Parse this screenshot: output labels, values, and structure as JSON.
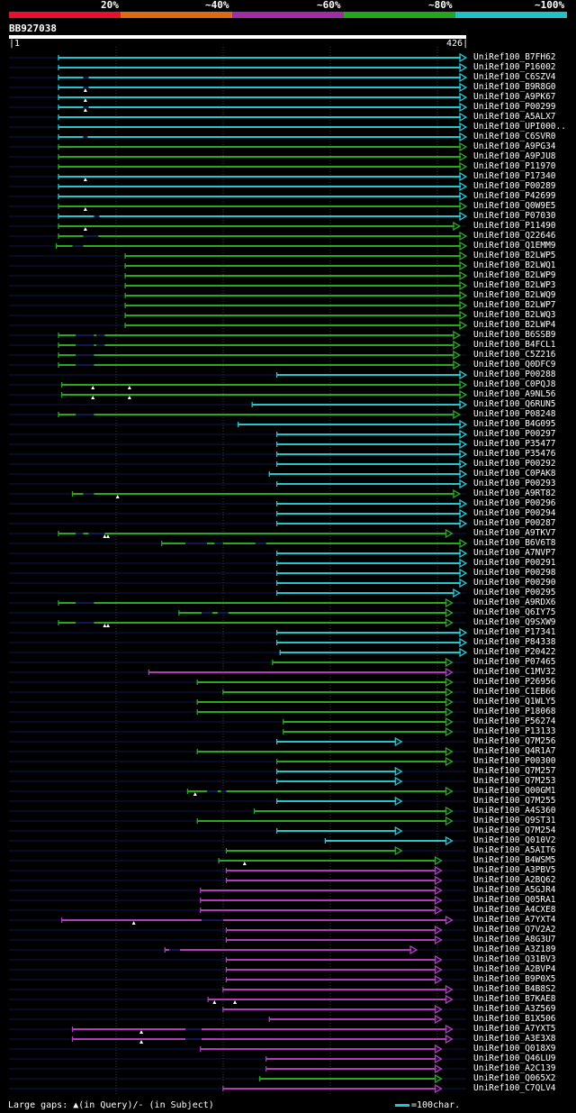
{
  "query": {
    "id": "BB927038",
    "length": 426,
    "start_label": "1",
    "end_label": "426"
  },
  "identity_scale": [
    {
      "label": "20%",
      "color": "#e8112d"
    },
    {
      "label": "~40%",
      "color": "#e06a10"
    },
    {
      "label": "~60%",
      "color": "#a02ca6"
    },
    {
      "label": "~80%",
      "color": "#23a61c"
    },
    {
      "label": "~100%",
      "color": "#20c2c8"
    }
  ],
  "colors": {
    "cyan": "#22c6cc",
    "green": "#28a81e",
    "magenta": "#b03cbc",
    "background": "#000000",
    "query_line": "#0f1650",
    "grid": "#3a3a3a"
  },
  "hits": [
    {
      "name": "UniRef100_B7FH62",
      "start": 47,
      "end": 426,
      "color": "cyan",
      "q_gaps": [],
      "s_gaps": []
    },
    {
      "name": "UniRef100_P16002",
      "start": 47,
      "end": 426,
      "color": "cyan",
      "q_gaps": [],
      "s_gaps": []
    },
    {
      "name": "UniRef100_C6SZV4",
      "start": 47,
      "end": 426,
      "color": "cyan",
      "q_gaps": [],
      "s_gaps": [
        [
          70,
          75
        ]
      ]
    },
    {
      "name": "UniRef100_B9R8G0",
      "start": 47,
      "end": 426,
      "color": "cyan",
      "q_gaps": [
        72
      ],
      "s_gaps": [
        [
          70,
          75
        ]
      ]
    },
    {
      "name": "UniRef100_A9PK67",
      "start": 47,
      "end": 426,
      "color": "cyan",
      "q_gaps": [
        72
      ],
      "s_gaps": []
    },
    {
      "name": "UniRef100_P00299",
      "start": 47,
      "end": 426,
      "color": "cyan",
      "q_gaps": [
        72
      ],
      "s_gaps": [
        [
          70,
          75
        ]
      ]
    },
    {
      "name": "UniRef100_A5ALX7",
      "start": 47,
      "end": 426,
      "color": "cyan",
      "q_gaps": [],
      "s_gaps": []
    },
    {
      "name": "UniRef100_UPI000..",
      "start": 47,
      "end": 426,
      "color": "cyan",
      "q_gaps": [],
      "s_gaps": []
    },
    {
      "name": "UniRef100_C6SVR0",
      "start": 47,
      "end": 426,
      "color": "cyan",
      "q_gaps": [],
      "s_gaps": [
        [
          70,
          74
        ]
      ]
    },
    {
      "name": "UniRef100_A9PG34",
      "start": 47,
      "end": 426,
      "color": "green",
      "q_gaps": [],
      "s_gaps": []
    },
    {
      "name": "UniRef100_A9PJU8",
      "start": 47,
      "end": 426,
      "color": "green",
      "q_gaps": [],
      "s_gaps": []
    },
    {
      "name": "UniRef100_P11970",
      "start": 47,
      "end": 426,
      "color": "green",
      "q_gaps": [],
      "s_gaps": []
    },
    {
      "name": "UniRef100_P17340",
      "start": 47,
      "end": 426,
      "color": "cyan",
      "q_gaps": [
        72
      ],
      "s_gaps": []
    },
    {
      "name": "UniRef100_P00289",
      "start": 47,
      "end": 426,
      "color": "cyan",
      "q_gaps": [],
      "s_gaps": []
    },
    {
      "name": "UniRef100_P42699",
      "start": 47,
      "end": 426,
      "color": "cyan",
      "q_gaps": [],
      "s_gaps": []
    },
    {
      "name": "UniRef100_Q0W9E5",
      "start": 47,
      "end": 426,
      "color": "green",
      "q_gaps": [
        72
      ],
      "s_gaps": []
    },
    {
      "name": "UniRef100_P07030",
      "start": 47,
      "end": 426,
      "color": "cyan",
      "q_gaps": [],
      "s_gaps": [
        [
          80,
          85
        ]
      ]
    },
    {
      "name": "UniRef100_P11490",
      "start": 47,
      "end": 420,
      "color": "green",
      "q_gaps": [
        72
      ],
      "s_gaps": []
    },
    {
      "name": "UniRef100_Q22646",
      "start": 47,
      "end": 426,
      "color": "green",
      "q_gaps": [],
      "s_gaps": [
        [
          70,
          84
        ]
      ]
    },
    {
      "name": "UniRef100_Q1EMM9",
      "start": 45,
      "end": 426,
      "color": "green",
      "q_gaps": [],
      "s_gaps": [
        [
          60,
          70
        ]
      ]
    },
    {
      "name": "UniRef100_B2LWP5",
      "start": 109,
      "end": 426,
      "color": "green",
      "q_gaps": [],
      "s_gaps": []
    },
    {
      "name": "UniRef100_B2LWQ1",
      "start": 109,
      "end": 426,
      "color": "green",
      "q_gaps": [],
      "s_gaps": []
    },
    {
      "name": "UniRef100_B2LWP9",
      "start": 109,
      "end": 426,
      "color": "green",
      "q_gaps": [],
      "s_gaps": []
    },
    {
      "name": "UniRef100_B2LWP3",
      "start": 109,
      "end": 426,
      "color": "green",
      "q_gaps": [],
      "s_gaps": []
    },
    {
      "name": "UniRef100_B2LWQ9",
      "start": 109,
      "end": 426,
      "color": "green",
      "q_gaps": [],
      "s_gaps": []
    },
    {
      "name": "UniRef100_B2LWP7",
      "start": 109,
      "end": 426,
      "color": "green",
      "q_gaps": [],
      "s_gaps": []
    },
    {
      "name": "UniRef100_B2LWQ3",
      "start": 109,
      "end": 426,
      "color": "green",
      "q_gaps": [],
      "s_gaps": []
    },
    {
      "name": "UniRef100_B2LWP4",
      "start": 109,
      "end": 426,
      "color": "green",
      "q_gaps": [],
      "s_gaps": []
    },
    {
      "name": "UniRef100_B6SSB9",
      "start": 47,
      "end": 420,
      "color": "green",
      "q_gaps": [],
      "s_gaps": [
        [
          63,
          80
        ],
        [
          82,
          90
        ]
      ]
    },
    {
      "name": "UniRef100_B4FCL1",
      "start": 47,
      "end": 420,
      "color": "green",
      "q_gaps": [],
      "s_gaps": [
        [
          63,
          80
        ],
        [
          82,
          90
        ]
      ]
    },
    {
      "name": "UniRef100_C5Z216",
      "start": 47,
      "end": 420,
      "color": "green",
      "q_gaps": [],
      "s_gaps": [
        [
          63,
          80
        ]
      ]
    },
    {
      "name": "UniRef100_Q0DFC9",
      "start": 47,
      "end": 420,
      "color": "green",
      "q_gaps": [],
      "s_gaps": [
        [
          63,
          80
        ]
      ]
    },
    {
      "name": "UniRef100_P00288",
      "start": 250,
      "end": 426,
      "color": "cyan",
      "q_gaps": [],
      "s_gaps": []
    },
    {
      "name": "UniRef100_C0PQJ8",
      "start": 50,
      "end": 426,
      "color": "green",
      "q_gaps": [
        79,
        113
      ],
      "s_gaps": []
    },
    {
      "name": "UniRef100_A9NL56",
      "start": 50,
      "end": 426,
      "color": "green",
      "q_gaps": [
        79,
        113
      ],
      "s_gaps": []
    },
    {
      "name": "UniRef100_Q6RUN5",
      "start": 227,
      "end": 426,
      "color": "cyan",
      "q_gaps": [],
      "s_gaps": []
    },
    {
      "name": "UniRef100_P08248",
      "start": 47,
      "end": 420,
      "color": "green",
      "q_gaps": [],
      "s_gaps": [
        [
          63,
          80
        ]
      ]
    },
    {
      "name": "UniRef100_B4G095",
      "start": 214,
      "end": 426,
      "color": "cyan",
      "q_gaps": [],
      "s_gaps": []
    },
    {
      "name": "UniRef100_P00297",
      "start": 250,
      "end": 426,
      "color": "cyan",
      "q_gaps": [],
      "s_gaps": []
    },
    {
      "name": "UniRef100_P35477",
      "start": 250,
      "end": 426,
      "color": "cyan",
      "q_gaps": [],
      "s_gaps": []
    },
    {
      "name": "UniRef100_P35476",
      "start": 250,
      "end": 426,
      "color": "cyan",
      "q_gaps": [],
      "s_gaps": []
    },
    {
      "name": "UniRef100_P00292",
      "start": 250,
      "end": 426,
      "color": "cyan",
      "q_gaps": [],
      "s_gaps": []
    },
    {
      "name": "UniRef100_C0PAK8",
      "start": 243,
      "end": 426,
      "color": "cyan",
      "q_gaps": [],
      "s_gaps": []
    },
    {
      "name": "UniRef100_P00293",
      "start": 250,
      "end": 426,
      "color": "cyan",
      "q_gaps": [],
      "s_gaps": []
    },
    {
      "name": "UniRef100_A9RT82",
      "start": 60,
      "end": 420,
      "color": "green",
      "q_gaps": [
        102
      ],
      "s_gaps": [
        [
          70,
          80
        ]
      ]
    },
    {
      "name": "UniRef100_P00296",
      "start": 250,
      "end": 426,
      "color": "cyan",
      "q_gaps": [],
      "s_gaps": []
    },
    {
      "name": "UniRef100_P00294",
      "start": 250,
      "end": 426,
      "color": "cyan",
      "q_gaps": [],
      "s_gaps": []
    },
    {
      "name": "UniRef100_P00287",
      "start": 250,
      "end": 426,
      "color": "cyan",
      "q_gaps": [],
      "s_gaps": []
    },
    {
      "name": "UniRef100_A9TKV7",
      "start": 47,
      "end": 413,
      "color": "green",
      "q_gaps": [
        90,
        93
      ],
      "s_gaps": [
        [
          63,
          70
        ],
        [
          75,
          90
        ]
      ]
    },
    {
      "name": "UniRef100_B6V6T8",
      "start": 143,
      "end": 426,
      "color": "green",
      "q_gaps": [],
      "s_gaps": [
        [
          165,
          185
        ],
        [
          192,
          200
        ],
        [
          230,
          240
        ]
      ]
    },
    {
      "name": "UniRef100_A7NVP7",
      "start": 250,
      "end": 426,
      "color": "cyan",
      "q_gaps": [],
      "s_gaps": []
    },
    {
      "name": "UniRef100_P00291",
      "start": 250,
      "end": 426,
      "color": "cyan",
      "q_gaps": [],
      "s_gaps": []
    },
    {
      "name": "UniRef100_P00298",
      "start": 250,
      "end": 426,
      "color": "cyan",
      "q_gaps": [],
      "s_gaps": []
    },
    {
      "name": "UniRef100_P00290",
      "start": 250,
      "end": 426,
      "color": "cyan",
      "q_gaps": [],
      "s_gaps": []
    },
    {
      "name": "UniRef100_P00295",
      "start": 250,
      "end": 420,
      "color": "cyan",
      "q_gaps": [],
      "s_gaps": []
    },
    {
      "name": "UniRef100_A9RDX6",
      "start": 47,
      "end": 413,
      "color": "green",
      "q_gaps": [],
      "s_gaps": [
        [
          63,
          80
        ]
      ]
    },
    {
      "name": "UniRef100_Q6IY75",
      "start": 159,
      "end": 413,
      "color": "green",
      "q_gaps": [],
      "s_gaps": [
        [
          180,
          190
        ],
        [
          195,
          205
        ]
      ]
    },
    {
      "name": "UniRef100_Q9SXW9",
      "start": 47,
      "end": 413,
      "color": "green",
      "q_gaps": [
        90,
        93
      ],
      "s_gaps": [
        [
          63,
          80
        ]
      ]
    },
    {
      "name": "UniRef100_P17341",
      "start": 250,
      "end": 426,
      "color": "cyan",
      "q_gaps": [],
      "s_gaps": []
    },
    {
      "name": "UniRef100_P84338",
      "start": 250,
      "end": 426,
      "color": "cyan",
      "q_gaps": [],
      "s_gaps": []
    },
    {
      "name": "UniRef100_P20422",
      "start": 253,
      "end": 426,
      "color": "cyan",
      "q_gaps": [],
      "s_gaps": []
    },
    {
      "name": "UniRef100_P07465",
      "start": 246,
      "end": 413,
      "color": "green",
      "q_gaps": [],
      "s_gaps": []
    },
    {
      "name": "UniRef100_C1MV32",
      "start": 131,
      "end": 413,
      "color": "magenta",
      "q_gaps": [],
      "s_gaps": []
    },
    {
      "name": "UniRef100_P26956",
      "start": 176,
      "end": 413,
      "color": "green",
      "q_gaps": [],
      "s_gaps": []
    },
    {
      "name": "UniRef100_C1EB66",
      "start": 200,
      "end": 413,
      "color": "green",
      "q_gaps": [],
      "s_gaps": []
    },
    {
      "name": "UniRef100_Q1WLY5",
      "start": 176,
      "end": 413,
      "color": "green",
      "q_gaps": [],
      "s_gaps": []
    },
    {
      "name": "UniRef100_P18068",
      "start": 176,
      "end": 413,
      "color": "green",
      "q_gaps": [],
      "s_gaps": []
    },
    {
      "name": "UniRef100_P56274",
      "start": 256,
      "end": 413,
      "color": "green",
      "q_gaps": [],
      "s_gaps": []
    },
    {
      "name": "UniRef100_P13133",
      "start": 256,
      "end": 413,
      "color": "green",
      "q_gaps": [],
      "s_gaps": []
    },
    {
      "name": "UniRef100_Q7M256",
      "start": 250,
      "end": 366,
      "color": "cyan",
      "q_gaps": [],
      "s_gaps": []
    },
    {
      "name": "UniRef100_Q4R1A7",
      "start": 176,
      "end": 413,
      "color": "green",
      "q_gaps": [],
      "s_gaps": []
    },
    {
      "name": "UniRef100_P00300",
      "start": 250,
      "end": 413,
      "color": "green",
      "q_gaps": [],
      "s_gaps": []
    },
    {
      "name": "UniRef100_Q7M257",
      "start": 250,
      "end": 366,
      "color": "cyan",
      "q_gaps": [],
      "s_gaps": []
    },
    {
      "name": "UniRef100_Q7M253",
      "start": 250,
      "end": 366,
      "color": "cyan",
      "q_gaps": [],
      "s_gaps": []
    },
    {
      "name": "UniRef100_Q00GM1",
      "start": 167,
      "end": 413,
      "color": "green",
      "q_gaps": [
        174
      ],
      "s_gaps": [
        [
          185,
          195
        ],
        [
          198,
          203
        ]
      ]
    },
    {
      "name": "UniRef100_Q7M255",
      "start": 250,
      "end": 366,
      "color": "cyan",
      "q_gaps": [],
      "s_gaps": []
    },
    {
      "name": "UniRef100_A4S360",
      "start": 229,
      "end": 413,
      "color": "green",
      "q_gaps": [],
      "s_gaps": []
    },
    {
      "name": "UniRef100_Q9ST31",
      "start": 176,
      "end": 413,
      "color": "green",
      "q_gaps": [],
      "s_gaps": []
    },
    {
      "name": "UniRef100_Q7M254",
      "start": 250,
      "end": 366,
      "color": "cyan",
      "q_gaps": [],
      "s_gaps": []
    },
    {
      "name": "UniRef100_Q010V2",
      "start": 295,
      "end": 413,
      "color": "cyan",
      "q_gaps": [],
      "s_gaps": []
    },
    {
      "name": "UniRef100_A5AIT6",
      "start": 203,
      "end": 366,
      "color": "green",
      "q_gaps": [],
      "s_gaps": []
    },
    {
      "name": "UniRef100_B4WSM5",
      "start": 196,
      "end": 403,
      "color": "green",
      "q_gaps": [
        220
      ],
      "s_gaps": []
    },
    {
      "name": "UniRef100_A3PBV5",
      "start": 203,
      "end": 403,
      "color": "magenta",
      "q_gaps": [],
      "s_gaps": []
    },
    {
      "name": "UniRef100_A2BQ62",
      "start": 203,
      "end": 403,
      "color": "magenta",
      "q_gaps": [],
      "s_gaps": []
    },
    {
      "name": "UniRef100_A5GJR4",
      "start": 179,
      "end": 403,
      "color": "magenta",
      "q_gaps": [],
      "s_gaps": []
    },
    {
      "name": "UniRef100_Q05RA1",
      "start": 179,
      "end": 403,
      "color": "magenta",
      "q_gaps": [],
      "s_gaps": []
    },
    {
      "name": "UniRef100_A4CXE8",
      "start": 179,
      "end": 403,
      "color": "magenta",
      "q_gaps": [],
      "s_gaps": []
    },
    {
      "name": "UniRef100_A7YXT4",
      "start": 50,
      "end": 413,
      "color": "magenta",
      "q_gaps": [
        117
      ],
      "s_gaps": [
        [
          180,
          200
        ]
      ]
    },
    {
      "name": "UniRef100_Q7V2A2",
      "start": 203,
      "end": 403,
      "color": "magenta",
      "q_gaps": [],
      "s_gaps": []
    },
    {
      "name": "UniRef100_A8G3U7",
      "start": 203,
      "end": 403,
      "color": "magenta",
      "q_gaps": [],
      "s_gaps": []
    },
    {
      "name": "UniRef100_A3Z189",
      "start": 146,
      "end": 380,
      "color": "magenta",
      "q_gaps": [],
      "s_gaps": [
        [
          150,
          160
        ]
      ]
    },
    {
      "name": "UniRef100_Q31BV3",
      "start": 203,
      "end": 403,
      "color": "magenta",
      "q_gaps": [],
      "s_gaps": []
    },
    {
      "name": "UniRef100_A2BVP4",
      "start": 203,
      "end": 403,
      "color": "magenta",
      "q_gaps": [],
      "s_gaps": []
    },
    {
      "name": "UniRef100_B9P0X5",
      "start": 203,
      "end": 403,
      "color": "magenta",
      "q_gaps": [],
      "s_gaps": []
    },
    {
      "name": "UniRef100_B4B8S2",
      "start": 200,
      "end": 413,
      "color": "magenta",
      "q_gaps": [],
      "s_gaps": []
    },
    {
      "name": "UniRef100_B7KAE8",
      "start": 186,
      "end": 413,
      "color": "magenta",
      "q_gaps": [
        192,
        211
      ],
      "s_gaps": []
    },
    {
      "name": "UniRef100_A3Z569",
      "start": 200,
      "end": 403,
      "color": "magenta",
      "q_gaps": [],
      "s_gaps": []
    },
    {
      "name": "UniRef100_B1X506",
      "start": 243,
      "end": 403,
      "color": "magenta",
      "q_gaps": [],
      "s_gaps": []
    },
    {
      "name": "UniRef100_A7YXT5",
      "start": 60,
      "end": 413,
      "color": "magenta",
      "q_gaps": [
        124
      ],
      "s_gaps": [
        [
          165,
          180
        ]
      ]
    },
    {
      "name": "UniRef100_A3E3X8",
      "start": 60,
      "end": 413,
      "color": "magenta",
      "q_gaps": [
        124
      ],
      "s_gaps": [
        [
          165,
          180
        ]
      ]
    },
    {
      "name": "UniRef100_Q018X9",
      "start": 179,
      "end": 403,
      "color": "magenta",
      "q_gaps": [],
      "s_gaps": []
    },
    {
      "name": "UniRef100_Q46LU9",
      "start": 240,
      "end": 403,
      "color": "magenta",
      "q_gaps": [],
      "s_gaps": []
    },
    {
      "name": "UniRef100_A2C139",
      "start": 240,
      "end": 403,
      "color": "magenta",
      "q_gaps": [],
      "s_gaps": []
    },
    {
      "name": "UniRef100_Q065X2",
      "start": 234,
      "end": 403,
      "color": "green",
      "q_gaps": [],
      "s_gaps": []
    },
    {
      "name": "UniRef100_C7QLV4",
      "start": 200,
      "end": 403,
      "color": "magenta",
      "q_gaps": [],
      "s_gaps": []
    }
  ],
  "legend": {
    "gaps_text": "Large gaps: ▲(in Query)/- (in Subject)",
    "scale_text": "=100char."
  }
}
